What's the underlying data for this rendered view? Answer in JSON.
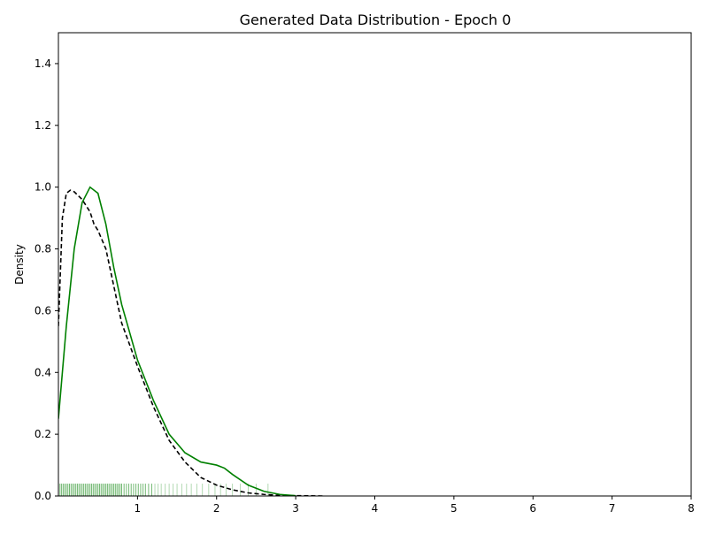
{
  "chart_data": {
    "type": "line",
    "title": "Generated Data Distribution - Epoch 0",
    "xlabel": "",
    "ylabel": "Density",
    "xlim": [
      0,
      8
    ],
    "ylim": [
      0,
      1.5
    ],
    "grid": false,
    "legend": "none",
    "x_ticks": [
      1,
      2,
      3,
      4,
      5,
      6,
      7,
      8
    ],
    "x_tick_labels": [
      "1",
      "2",
      "3",
      "4",
      "5",
      "6",
      "7",
      "8"
    ],
    "y_ticks": [
      0,
      0.2,
      0.4,
      0.6,
      0.8,
      1.0,
      1.2,
      1.4
    ],
    "y_tick_labels": [
      "0.0",
      "0.2",
      "0.4",
      "0.6",
      "0.8",
      "1.0",
      "1.2",
      "1.4"
    ],
    "series": [
      {
        "style": "dashed",
        "color": "#000000",
        "x": [
          0.0,
          0.05,
          0.1,
          0.15,
          0.2,
          0.3,
          0.4,
          0.45,
          0.5,
          0.6,
          0.7,
          0.8,
          1.0,
          1.2,
          1.4,
          1.6,
          1.8,
          2.0,
          2.2,
          2.4,
          2.6,
          2.8,
          3.0,
          3.2,
          3.35
        ],
        "y": [
          0.55,
          0.9,
          0.98,
          0.99,
          0.985,
          0.96,
          0.92,
          0.88,
          0.86,
          0.8,
          0.68,
          0.56,
          0.42,
          0.29,
          0.18,
          0.11,
          0.06,
          0.035,
          0.02,
          0.01,
          0.005,
          0.002,
          0.001,
          0.0005,
          0.0
        ]
      },
      {
        "style": "solid",
        "color": "#008000",
        "x": [
          0.0,
          0.1,
          0.2,
          0.3,
          0.4,
          0.5,
          0.6,
          0.7,
          0.8,
          1.0,
          1.2,
          1.4,
          1.6,
          1.8,
          2.0,
          2.1,
          2.2,
          2.4,
          2.6,
          2.8,
          3.0
        ],
        "y": [
          0.25,
          0.55,
          0.8,
          0.95,
          1.0,
          0.98,
          0.88,
          0.74,
          0.62,
          0.44,
          0.31,
          0.2,
          0.14,
          0.11,
          0.1,
          0.09,
          0.07,
          0.035,
          0.015,
          0.005,
          0.001
        ]
      }
    ],
    "rug": {
      "color": "#008000",
      "height": 0.04,
      "x": [
        0.02,
        0.04,
        0.06,
        0.08,
        0.1,
        0.12,
        0.14,
        0.16,
        0.18,
        0.2,
        0.22,
        0.24,
        0.26,
        0.28,
        0.3,
        0.32,
        0.34,
        0.36,
        0.38,
        0.4,
        0.42,
        0.44,
        0.46,
        0.48,
        0.5,
        0.52,
        0.54,
        0.56,
        0.58,
        0.6,
        0.62,
        0.64,
        0.66,
        0.68,
        0.7,
        0.72,
        0.74,
        0.76,
        0.78,
        0.8,
        0.83,
        0.86,
        0.89,
        0.92,
        0.95,
        0.98,
        1.01,
        1.04,
        1.07,
        1.1,
        1.14,
        1.18,
        1.22,
        1.26,
        1.3,
        1.35,
        1.4,
        1.45,
        1.5,
        1.56,
        1.62,
        1.68,
        1.75,
        1.82,
        1.9,
        1.98,
        2.05,
        2.12,
        2.2,
        2.3,
        2.4,
        2.5,
        2.65
      ]
    }
  }
}
